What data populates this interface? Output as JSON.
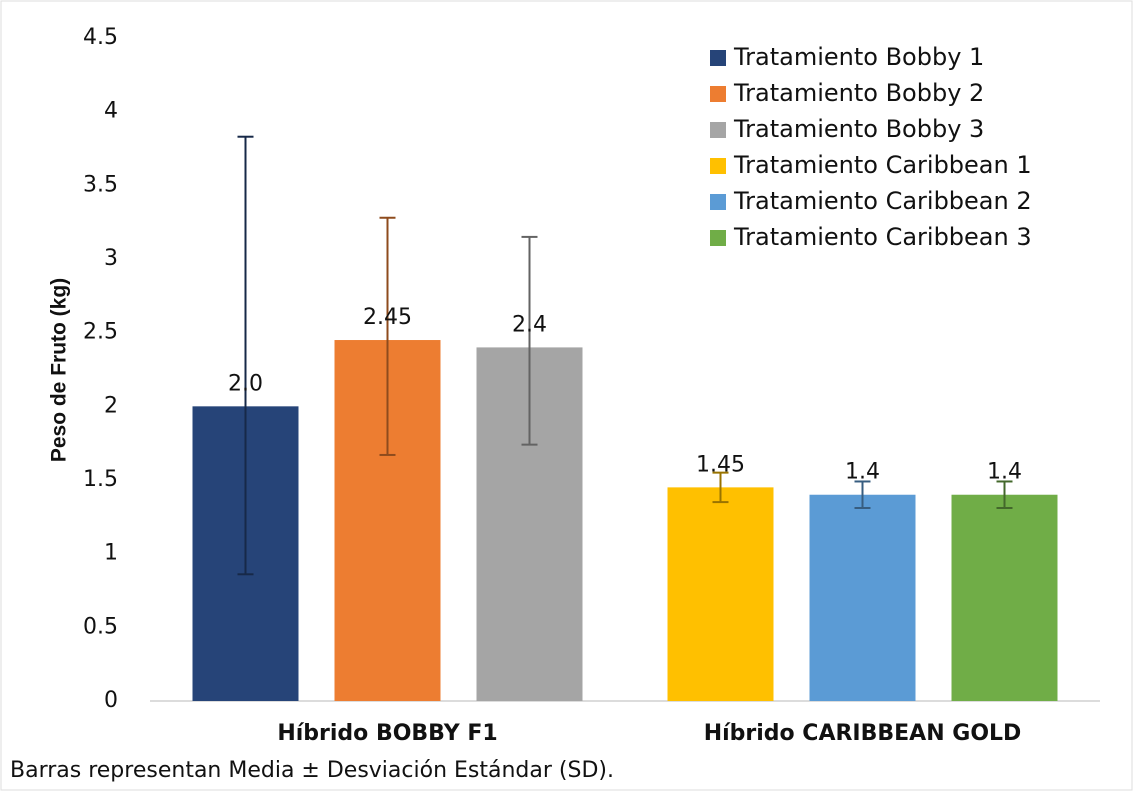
{
  "chart_data": {
    "type": "bar",
    "ylabel": "Peso de Fruto (kg)",
    "note": "Barras representan Media ± Desviación Estándar (SD).",
    "categories": [
      "Híbrido BOBBY F1",
      "Híbrido CARIBBEAN GOLD"
    ],
    "series": [
      {
        "name": "Tratamiento Bobby 1",
        "color": "#264478",
        "values": [
          2.0,
          null
        ],
        "value_labels": [
          "2.0",
          null
        ],
        "error_plus": [
          1.83,
          null
        ],
        "error_minus": [
          1.14,
          null
        ]
      },
      {
        "name": "Tratamiento Bobby 2",
        "color": "#ed7d31",
        "values": [
          2.45,
          null
        ],
        "value_labels": [
          "2.45",
          null
        ],
        "error_plus": [
          0.83,
          null
        ],
        "error_minus": [
          0.78,
          null
        ]
      },
      {
        "name": "Tratamiento Bobby 3",
        "color": "#a5a5a5",
        "values": [
          2.4,
          null
        ],
        "value_labels": [
          "2.4",
          null
        ],
        "error_plus": [
          0.75,
          null
        ],
        "error_minus": [
          0.66,
          null
        ]
      },
      {
        "name": "Tratamiento Caribbean 1",
        "color": "#ffc000",
        "values": [
          null,
          1.45
        ],
        "value_labels": [
          null,
          "1.45"
        ],
        "error_plus": [
          null,
          0.1
        ],
        "error_minus": [
          null,
          0.1
        ]
      },
      {
        "name": "Tratamiento Caribbean 2",
        "color": "#5b9bd5",
        "values": [
          null,
          1.4
        ],
        "value_labels": [
          null,
          "1.4"
        ],
        "error_plus": [
          null,
          0.09
        ],
        "error_minus": [
          null,
          0.09
        ]
      },
      {
        "name": "Tratamiento Caribbean 3",
        "color": "#70ad47",
        "values": [
          null,
          1.4
        ],
        "value_labels": [
          null,
          "1.4"
        ],
        "error_plus": [
          null,
          0.09
        ],
        "error_minus": [
          null,
          0.09
        ]
      }
    ],
    "ylim": [
      0,
      4.5
    ],
    "yticks": [
      0,
      0.5,
      1,
      1.5,
      2,
      2.5,
      3,
      3.5,
      4,
      4.5
    ],
    "grid": false,
    "legend": "upper right"
  }
}
